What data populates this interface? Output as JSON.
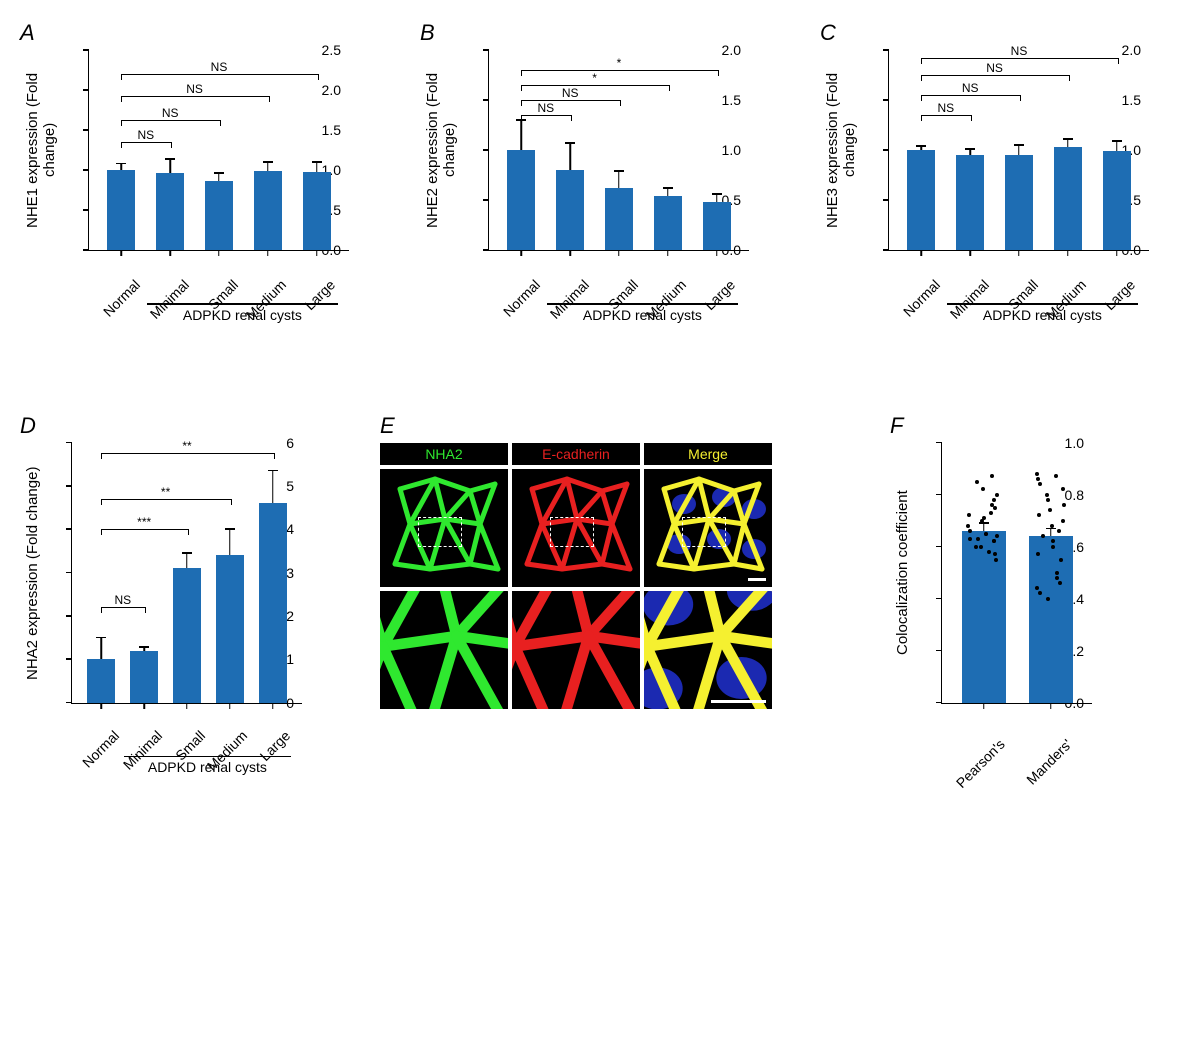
{
  "colors": {
    "bar": "#1e6db3",
    "axis": "#000000",
    "bg": "#ffffff",
    "nha2_green": "#2fe82f",
    "ecad_red": "#e82020",
    "merge_yellow": "#f5f030",
    "merge_blue": "#2030d0"
  },
  "panelA": {
    "label": "A",
    "ylabel": "NHE1 expression (Fold change)",
    "ymax": 2.5,
    "ytick": 0.5,
    "categories": [
      "Normal",
      "Minimal",
      "Small",
      "Medium",
      "Large"
    ],
    "values": [
      1.0,
      0.96,
      0.86,
      0.99,
      0.98
    ],
    "errors": [
      0.08,
      0.18,
      0.1,
      0.11,
      0.12
    ],
    "group_label": "ADPKD renal cysts",
    "sig": [
      {
        "from": 0,
        "to": 1,
        "label": "NS",
        "y": 1.35
      },
      {
        "from": 0,
        "to": 2,
        "label": "NS",
        "y": 1.63
      },
      {
        "from": 0,
        "to": 3,
        "label": "NS",
        "y": 1.92
      },
      {
        "from": 0,
        "to": 4,
        "label": "NS",
        "y": 2.2
      }
    ]
  },
  "panelB": {
    "label": "B",
    "ylabel": "NHE2 expression (Fold change)",
    "ymax": 2.0,
    "ytick": 0.5,
    "categories": [
      "Normal",
      "Minimal",
      "Small",
      "Medium",
      "Large"
    ],
    "values": [
      1.0,
      0.8,
      0.62,
      0.54,
      0.48
    ],
    "errors": [
      0.3,
      0.27,
      0.17,
      0.08,
      0.08
    ],
    "group_label": "ADPKD renal cysts",
    "sig": [
      {
        "from": 0,
        "to": 1,
        "label": "NS",
        "y": 1.35
      },
      {
        "from": 0,
        "to": 2,
        "label": "NS",
        "y": 1.5
      },
      {
        "from": 0,
        "to": 3,
        "label": "*",
        "y": 1.65
      },
      {
        "from": 0,
        "to": 4,
        "label": "*",
        "y": 1.8
      }
    ]
  },
  "panelC": {
    "label": "C",
    "ylabel": "NHE3 expression (Fold change)",
    "ymax": 2.0,
    "ytick": 0.5,
    "categories": [
      "Normal",
      "Minimal",
      "Small",
      "Medium",
      "Large"
    ],
    "values": [
      1.0,
      0.95,
      0.95,
      1.03,
      0.99
    ],
    "errors": [
      0.04,
      0.06,
      0.1,
      0.08,
      0.1
    ],
    "group_label": "ADPKD renal cysts",
    "sig": [
      {
        "from": 0,
        "to": 1,
        "label": "NS",
        "y": 1.35
      },
      {
        "from": 0,
        "to": 2,
        "label": "NS",
        "y": 1.55
      },
      {
        "from": 0,
        "to": 3,
        "label": "NS",
        "y": 1.75
      },
      {
        "from": 0,
        "to": 4,
        "label": "NS",
        "y": 1.92
      }
    ]
  },
  "panelD": {
    "label": "D",
    "ylabel": "NHA2 expression (Fold change)",
    "ymax": 6,
    "ytick": 1,
    "categories": [
      "Normal",
      "Minimal",
      "Small",
      "Medium",
      "Large"
    ],
    "values": [
      1.0,
      1.2,
      3.1,
      3.4,
      4.6
    ],
    "errors": [
      0.5,
      0.08,
      0.35,
      0.6,
      0.75
    ],
    "bar_labels": [
      "1.0",
      "1.2",
      "3.1",
      "3.4",
      "4.6"
    ],
    "group_label": "ADPKD renal cysts",
    "sig": [
      {
        "from": 0,
        "to": 1,
        "label": "NS",
        "y": 2.2
      },
      {
        "from": 0,
        "to": 2,
        "label": "***",
        "y": 4.0
      },
      {
        "from": 0,
        "to": 3,
        "label": "**",
        "y": 4.7
      },
      {
        "from": 0,
        "to": 4,
        "label": "**",
        "y": 5.75
      }
    ]
  },
  "panelE": {
    "label": "E",
    "headers": [
      "NHA2",
      "E-cadherin",
      "Merge"
    ],
    "header_colors": [
      "#2fe82f",
      "#e82020",
      "#f5f030"
    ]
  },
  "panelF": {
    "label": "F",
    "ylabel": "Colocalization coefficient",
    "ymax": 1.0,
    "ytick": 0.2,
    "categories": [
      "Pearson's",
      "Manders'"
    ],
    "values": [
      0.66,
      0.64
    ],
    "errors": [
      0.03,
      0.03
    ],
    "scatter": [
      [
        0.55,
        0.57,
        0.58,
        0.6,
        0.6,
        0.62,
        0.62,
        0.63,
        0.63,
        0.64,
        0.65,
        0.65,
        0.66,
        0.68,
        0.7,
        0.71,
        0.72,
        0.73,
        0.75,
        0.76,
        0.78,
        0.8,
        0.82,
        0.85,
        0.87
      ],
      [
        0.4,
        0.42,
        0.44,
        0.46,
        0.48,
        0.5,
        0.55,
        0.57,
        0.6,
        0.62,
        0.64,
        0.66,
        0.68,
        0.7,
        0.72,
        0.74,
        0.76,
        0.78,
        0.8,
        0.82,
        0.84,
        0.86,
        0.87,
        0.88
      ]
    ]
  }
}
